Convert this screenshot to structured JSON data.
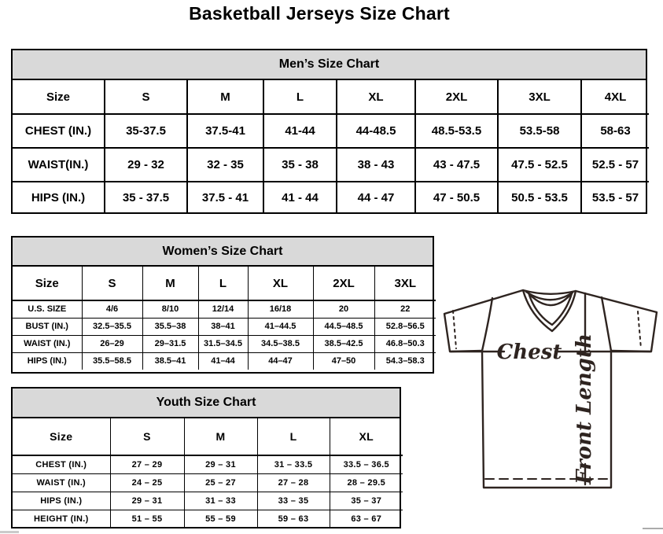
{
  "page": {
    "title": "Basketball Jerseys Size Chart"
  },
  "colors": {
    "table_header_bg": "#d9d9d9",
    "table_border": "#000000",
    "diagram_ink": "#2e2420",
    "page_bg": "#ffffff"
  },
  "tables": {
    "men": {
      "title": "Men’s Size Chart",
      "header": [
        "Size",
        "S",
        "M",
        "L",
        "XL",
        "2XL",
        "3XL",
        "4XL"
      ],
      "rows": [
        {
          "label": "CHEST (IN.)",
          "values": [
            "35-37.5",
            "37.5-41",
            "41-44",
            "44-48.5",
            "48.5-53.5",
            "53.5-58",
            "58-63"
          ]
        },
        {
          "label": "WAIST(IN.)",
          "values": [
            "29 - 32",
            "32 - 35",
            "35 - 38",
            "38 - 43",
            "43 - 47.5",
            "47.5 - 52.5",
            "52.5 - 57"
          ]
        },
        {
          "label": "HIPS (IN.)",
          "values": [
            "35 - 37.5",
            "37.5 - 41",
            "41 - 44",
            "44 - 47",
            "47 - 50.5",
            "50.5 - 53.5",
            "53.5 - 57"
          ]
        }
      ]
    },
    "women": {
      "title": "Women’s Size Chart",
      "header": [
        "Size",
        "S",
        "M",
        "L",
        "XL",
        "2XL",
        "3XL"
      ],
      "rows": [
        {
          "label": "U.S. SIZE",
          "values": [
            "4/6",
            "8/10",
            "12/14",
            "16/18",
            "20",
            "22"
          ]
        },
        {
          "label": "BUST (IN.)",
          "values": [
            "32.5–35.5",
            "35.5–38",
            "38–41",
            "41–44.5",
            "44.5–48.5",
            "52.8–56.5"
          ]
        },
        {
          "label": "WAIST (IN.)",
          "values": [
            "26–29",
            "29–31.5",
            "31.5–34.5",
            "34.5–38.5",
            "38.5–42.5",
            "46.8–50.3"
          ]
        },
        {
          "label": "HIPS (IN.)",
          "values": [
            "35.5–58.5",
            "38.5–41",
            "41–44",
            "44–47",
            "47–50",
            "54.3–58.3"
          ]
        }
      ]
    },
    "youth": {
      "title": "Youth Size Chart",
      "header": [
        "Size",
        "S",
        "M",
        "L",
        "XL"
      ],
      "rows": [
        {
          "label": "CHEST (IN.)",
          "values": [
            "27 – 29",
            "29 – 31",
            "31 – 33.5",
            "33.5 – 36.5"
          ]
        },
        {
          "label": "WAIST (IN.)",
          "values": [
            "24 – 25",
            "25 – 27",
            "27 – 28",
            "28 – 29.5"
          ]
        },
        {
          "label": "HIPS (IN.)",
          "values": [
            "29 – 31",
            "31 – 33",
            "33 – 35",
            "35 – 37"
          ]
        },
        {
          "label": "HEIGHT (IN.)",
          "values": [
            "51 – 55",
            "55 – 59",
            "59 – 63",
            "63 – 67"
          ]
        }
      ]
    }
  },
  "diagram": {
    "chest_label": "Chest",
    "front_length_label": "Front Length"
  }
}
